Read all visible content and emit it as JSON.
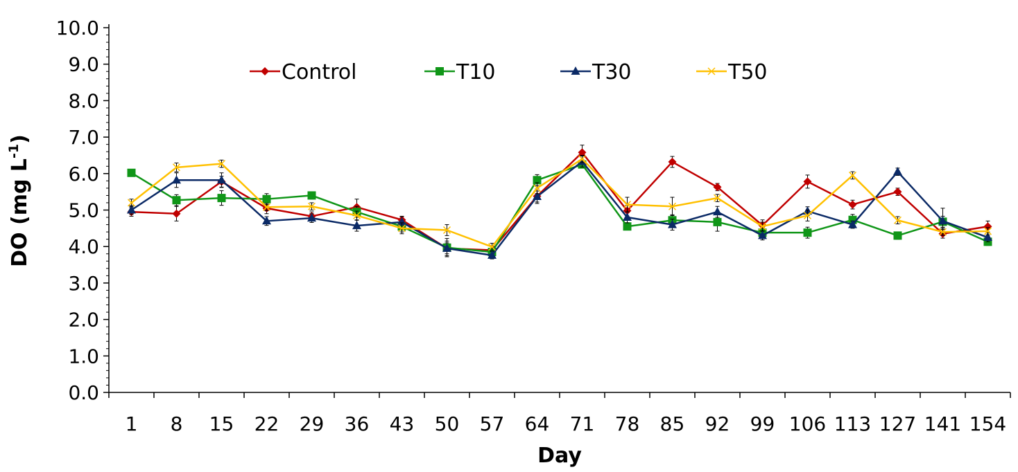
{
  "chart_data": {
    "type": "line",
    "xlabel": "Day",
    "ylabel": "DO (mg L",
    "ylabel_superscript": "-1",
    "ylabel_suffix": ")",
    "ylim": [
      0,
      10
    ],
    "y_ticks": [
      "0.0",
      "1.0",
      "2.0",
      "3.0",
      "4.0",
      "5.0",
      "6.0",
      "7.0",
      "8.0",
      "9.0",
      "10.0"
    ],
    "categories": [
      "1",
      "8",
      "15",
      "22",
      "29",
      "36",
      "43",
      "50",
      "57",
      "64",
      "71",
      "78",
      "85",
      "92",
      "99",
      "106",
      "113",
      "127",
      "141",
      "154"
    ],
    "legend_position": "top",
    "grid": false,
    "series": [
      {
        "name": "Control",
        "color": "#C00000",
        "marker": "diamond",
        "values": [
          4.95,
          4.9,
          5.78,
          5.05,
          4.83,
          5.08,
          4.73,
          3.95,
          3.9,
          5.38,
          6.58,
          4.98,
          6.32,
          5.63,
          4.58,
          5.78,
          5.15,
          5.5,
          4.35,
          4.55
        ],
        "errors": [
          0.12,
          0.2,
          0.15,
          0.15,
          0.12,
          0.22,
          0.1,
          0.2,
          0.12,
          0.2,
          0.2,
          0.15,
          0.15,
          0.1,
          0.15,
          0.18,
          0.12,
          0.1,
          0.12,
          0.15
        ]
      },
      {
        "name": "T10",
        "color": "#109618",
        "marker": "square",
        "values": [
          6.02,
          5.27,
          5.33,
          5.3,
          5.4,
          4.95,
          4.55,
          3.97,
          3.85,
          5.82,
          6.25,
          4.55,
          4.72,
          4.67,
          4.38,
          4.38,
          4.73,
          4.3,
          4.68,
          4.13
        ],
        "errors": [
          0.08,
          0.15,
          0.2,
          0.15,
          0.1,
          0.15,
          0.15,
          0.25,
          0.15,
          0.15,
          0.1,
          0.1,
          0.15,
          0.25,
          0.1,
          0.15,
          0.15,
          0.1,
          0.15,
          0.1
        ]
      },
      {
        "name": "T30",
        "color": "#0B2A66",
        "marker": "triangle",
        "values": [
          5.0,
          5.82,
          5.82,
          4.7,
          4.78,
          4.57,
          4.67,
          3.95,
          3.76,
          5.37,
          6.33,
          4.8,
          4.6,
          4.95,
          4.3,
          4.97,
          4.6,
          6.05,
          4.7,
          4.25
        ],
        "errors": [
          0.12,
          0.2,
          0.2,
          0.12,
          0.12,
          0.15,
          0.15,
          0.15,
          0.1,
          0.15,
          0.15,
          0.15,
          0.15,
          0.15,
          0.12,
          0.12,
          0.1,
          0.1,
          0.35,
          0.12
        ]
      },
      {
        "name": "T50",
        "color": "#FFC000",
        "marker": "x",
        "values": [
          5.2,
          6.17,
          6.27,
          5.08,
          5.1,
          4.85,
          4.5,
          4.45,
          3.99,
          5.6,
          6.4,
          5.15,
          5.1,
          5.33,
          4.55,
          4.85,
          5.95,
          4.72,
          4.4,
          4.42
        ],
        "errors": [
          0.1,
          0.12,
          0.1,
          0.1,
          0.1,
          0.12,
          0.15,
          0.15,
          0.1,
          0.15,
          0.1,
          0.2,
          0.25,
          0.1,
          0.12,
          0.15,
          0.1,
          0.1,
          0.1,
          0.1
        ]
      }
    ]
  }
}
